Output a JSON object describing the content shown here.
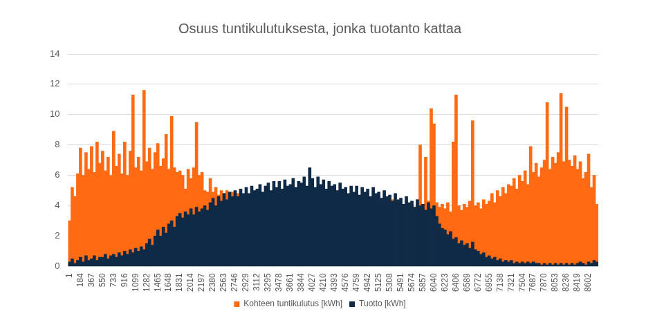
{
  "chart_data": {
    "type": "bar",
    "title": "Osuus tuntikulutuksesta, jonka tuotanto kattaa",
    "categories": [
      "1",
      null,
      null,
      null,
      "184",
      null,
      null,
      null,
      "367",
      null,
      null,
      null,
      "550",
      null,
      null,
      null,
      "733",
      null,
      null,
      null,
      "916",
      null,
      null,
      null,
      "1099",
      null,
      null,
      null,
      "1282",
      null,
      null,
      null,
      "1465",
      null,
      null,
      null,
      "1648",
      null,
      null,
      null,
      "1831",
      null,
      null,
      null,
      "2014",
      null,
      null,
      null,
      "2197",
      null,
      null,
      null,
      "2380",
      null,
      null,
      null,
      "2563",
      null,
      null,
      null,
      "2746",
      null,
      null,
      null,
      "2929",
      null,
      null,
      null,
      "3112",
      null,
      null,
      null,
      "3295",
      null,
      null,
      null,
      "3478",
      null,
      null,
      null,
      "3661",
      null,
      null,
      null,
      "3844",
      null,
      null,
      null,
      "4027",
      null,
      null,
      null,
      "4210",
      null,
      null,
      null,
      "4393",
      null,
      null,
      null,
      "4576",
      null,
      null,
      null,
      "4759",
      null,
      null,
      null,
      "4942",
      null,
      null,
      null,
      "5125",
      null,
      null,
      null,
      "5308",
      null,
      null,
      null,
      "5491",
      null,
      null,
      null,
      "5674",
      null,
      null,
      null,
      "5857",
      null,
      null,
      null,
      "6040",
      null,
      null,
      null,
      "6223",
      null,
      null,
      null,
      "6406",
      null,
      null,
      null,
      "6589",
      null,
      null,
      null,
      "6772",
      null,
      null,
      null,
      "6955",
      null,
      null,
      null,
      "7138",
      null,
      null,
      null,
      "7321",
      null,
      null,
      null,
      "7504",
      null,
      null,
      null,
      "7687",
      null,
      null,
      null,
      "7870",
      null,
      null,
      null,
      "8053",
      null,
      null,
      null,
      "8236",
      null,
      null,
      null,
      "8419",
      null,
      null,
      null,
      "8602",
      null,
      null,
      null
    ],
    "series": [
      {
        "name": "Kohteen tuntikulutus [kWh]",
        "color": "#ff6a13",
        "values": [
          3.0,
          5.2,
          4.6,
          6.1,
          7.8,
          6.0,
          7.5,
          6.4,
          7.9,
          6.2,
          8.2,
          6.8,
          7.6,
          6.3,
          7.2,
          6.0,
          8.9,
          6.6,
          7.4,
          6.1,
          8.2,
          6.0,
          7.6,
          11.3,
          6.5,
          7.2,
          6.3,
          11.6,
          6.9,
          7.8,
          6.4,
          7.5,
          8.1,
          6.6,
          7.1,
          8.7,
          6.4,
          9.9,
          6.5,
          6.2,
          6.3,
          6.0,
          5.1,
          6.4,
          5.8,
          6.5,
          9.5,
          6.0,
          6.2,
          5.0,
          4.9,
          5.8,
          4.9,
          5.2,
          4.7,
          5.0,
          4.8,
          5.0,
          4.7,
          4.9,
          4.6,
          4.8,
          4.5,
          4.7,
          4.4,
          4.6,
          4.3,
          4.5,
          4.5,
          4.2,
          4.6,
          4.3,
          4.2,
          4.4,
          4.0,
          4.3,
          4.1,
          4.3,
          3.9,
          4.2,
          4.0,
          4.2,
          3.8,
          4.1,
          3.9,
          4.1,
          3.8,
          4.0,
          3.8,
          4.3,
          3.7,
          4.0,
          3.9,
          4.4,
          3.8,
          4.1,
          3.7,
          4.2,
          3.6,
          4.0,
          3.8,
          4.1,
          3.6,
          3.9,
          3.9,
          4.3,
          3.8,
          4.2,
          4.0,
          4.4,
          3.9,
          4.3,
          4.1,
          3.8,
          4.2,
          3.9,
          4.0,
          4.4,
          3.9,
          4.2,
          4.1,
          3.8,
          4.3,
          4.0,
          4.2,
          3.9,
          4.4,
          8.0,
          4.1,
          7.2,
          4.3,
          10.4,
          9.4,
          4.2,
          3.9,
          4.1,
          3.8,
          4.2,
          3.6,
          8.2,
          11.3,
          4.0,
          3.7,
          4.1,
          3.9,
          4.3,
          9.6,
          4.0,
          4.2,
          3.8,
          4.4,
          4.1,
          4.3,
          4.8,
          4.2,
          5.0,
          4.6,
          5.2,
          4.8,
          5.4,
          5.3,
          5.8,
          5.1,
          6.0,
          5.6,
          6.3,
          5.4,
          7.9,
          6.2,
          6.8,
          5.9,
          6.5,
          7.0,
          10.8,
          6.4,
          7.2,
          6.8,
          7.5,
          11.4,
          6.9,
          10.5,
          7.0,
          6.6,
          7.3,
          6.4,
          6.9,
          5.8,
          6.2,
          7.4,
          5.2,
          6.0,
          4.1
        ]
      },
      {
        "name": "Tuotto [kWh]",
        "color": "#0e2a47",
        "values": [
          0.3,
          0.5,
          0.2,
          0.4,
          0.6,
          0.3,
          0.7,
          0.4,
          0.5,
          0.7,
          0.4,
          0.6,
          0.6,
          0.8,
          0.5,
          0.7,
          0.8,
          0.6,
          0.9,
          0.7,
          1.0,
          0.8,
          1.1,
          0.9,
          1.2,
          1.0,
          1.3,
          1.1,
          1.5,
          1.8,
          1.4,
          2.0,
          2.4,
          2.0,
          2.6,
          2.2,
          2.8,
          3.0,
          2.6,
          3.3,
          3.5,
          3.2,
          3.6,
          3.4,
          3.8,
          3.4,
          3.9,
          3.6,
          3.8,
          4.0,
          3.7,
          4.2,
          4.5,
          4.0,
          4.6,
          4.3,
          4.8,
          4.4,
          4.9,
          4.6,
          5.0,
          4.6,
          5.1,
          4.8,
          5.2,
          4.8,
          5.3,
          5.0,
          5.1,
          5.4,
          4.9,
          5.3,
          5.5,
          5.0,
          5.6,
          5.2,
          5.6,
          5.1,
          5.7,
          5.3,
          5.4,
          5.8,
          5.2,
          5.6,
          5.5,
          5.9,
          5.3,
          6.5,
          5.8,
          5.2,
          5.9,
          5.4,
          5.7,
          5.1,
          5.6,
          5.3,
          5.4,
          5.0,
          5.5,
          5.1,
          5.2,
          4.8,
          5.3,
          4.9,
          5.3,
          4.7,
          5.2,
          4.9,
          5.1,
          4.6,
          5.2,
          4.8,
          4.9,
          4.5,
          5.0,
          4.6,
          4.7,
          4.3,
          4.8,
          4.4,
          4.5,
          4.1,
          4.6,
          4.2,
          4.3,
          3.9,
          4.4,
          4.0,
          4.1,
          3.7,
          4.2,
          3.8,
          4.0,
          3.3,
          2.8,
          2.5,
          2.4,
          2.1,
          2.3,
          1.8,
          1.9,
          1.5,
          1.7,
          1.4,
          1.5,
          1.2,
          1.6,
          1.1,
          1.0,
          0.8,
          0.9,
          0.6,
          0.7,
          0.5,
          0.6,
          0.4,
          0.5,
          0.3,
          0.4,
          0.3,
          0.4,
          0.2,
          0.3,
          0.2,
          0.3,
          0.2,
          0.3,
          0.2,
          0.3,
          0.2,
          0.2,
          0.1,
          0.2,
          0.1,
          0.2,
          0.1,
          0.2,
          0.1,
          0.2,
          0.1,
          0.2,
          0.1,
          0.2,
          0.1,
          0.2,
          0.3,
          0.2,
          0.1,
          0.3,
          0.2,
          0.4,
          0.3
        ]
      }
    ],
    "ylim": [
      0,
      14
    ],
    "yticks": [
      0,
      2,
      4,
      6,
      8,
      10,
      12,
      14
    ],
    "grid": true,
    "legend": "bottom"
  }
}
